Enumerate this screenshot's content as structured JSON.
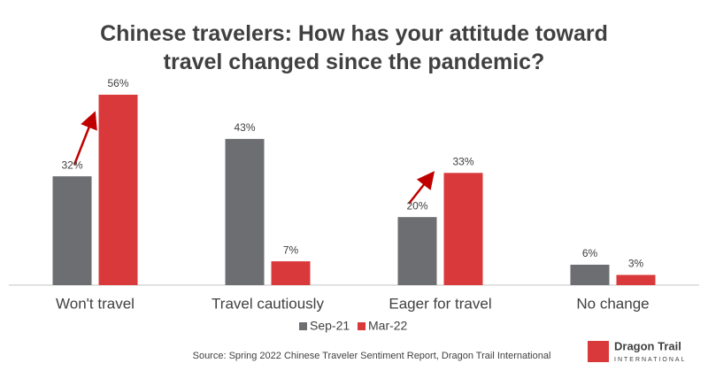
{
  "chart_data": {
    "type": "bar",
    "title": "Chinese travelers: How has your attitude toward travel changed since the pandemic?",
    "categories": [
      "Won't travel",
      "Travel cautiously",
      "Eager for travel",
      "No change"
    ],
    "series": [
      {
        "name": "Sep-21",
        "color": "#6d6e71",
        "values": [
          32,
          43,
          20,
          6
        ],
        "value_labels": [
          "32%",
          "43%",
          "20%",
          "6%"
        ]
      },
      {
        "name": "Mar-22",
        "color": "#d9393b",
        "values": [
          56,
          7,
          33,
          3
        ],
        "value_labels": [
          "56%",
          "7%",
          "33%",
          "3%"
        ]
      }
    ],
    "legend": "bottom",
    "source": "Source: Spring 2022 Chinese Traveler Sentiment Report, Dragon Trail International"
  },
  "logo": {
    "name": "Dragon Trail",
    "tagline": "INTERNATIONAL"
  }
}
